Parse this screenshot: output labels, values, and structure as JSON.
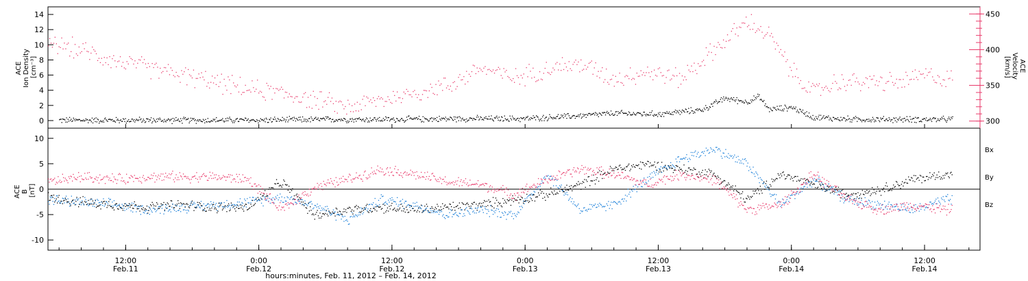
{
  "figure": {
    "xlabel": "hours:minutes, Feb. 11, 2012 – Feb. 14, 2012",
    "time_ticks": [
      {
        "time": "12:00",
        "date": "Feb.11"
      },
      {
        "time": "0:00",
        "date": "Feb.12"
      },
      {
        "time": "12:00",
        "date": "Feb.12"
      },
      {
        "time": "0:00",
        "date": "Feb.13"
      },
      {
        "time": "12:00",
        "date": "Feb.13"
      },
      {
        "time": "0:00",
        "date": "Feb.14"
      },
      {
        "time": "12:00",
        "date": "Feb.14"
      }
    ]
  },
  "colors": {
    "density": "#000000",
    "velocity": "#e8396a",
    "bx": "#000000",
    "by": "#1a7fd9",
    "bz": "#e8396a"
  },
  "chart_data": [
    {
      "type": "scatter",
      "ylabel_left": [
        "ACE",
        "Ion Density",
        "[cm⁻³]"
      ],
      "ylabel_right": [
        "ACE",
        "Velocity",
        "[km/s]"
      ],
      "xlim_hours": [
        -7,
        77
      ],
      "ylim_left": [
        -1,
        15
      ],
      "ylim_right": [
        290,
        460
      ],
      "yticks_left": [
        "0",
        "2",
        "4",
        "6",
        "8",
        "10",
        "12",
        "14"
      ],
      "yticks_right": [
        "300",
        "350",
        "400",
        "450"
      ],
      "series": [
        {
          "key": "density",
          "axis": "left",
          "x_hours": [
            -6,
            0,
            6,
            12,
            18,
            24,
            30,
            36,
            40,
            44,
            48,
            52,
            54,
            56,
            57,
            58,
            60,
            62,
            64,
            66,
            68,
            70,
            72,
            74
          ],
          "values": [
            0.1,
            0.1,
            0.1,
            0.1,
            0.2,
            0.2,
            0.3,
            0.3,
            0.6,
            1.0,
            0.9,
            1.5,
            3.0,
            2.5,
            3.2,
            1.5,
            1.8,
            0.5,
            0.3,
            0.2,
            0.2,
            0.2,
            0.2,
            0.2
          ]
        },
        {
          "key": "velocity",
          "axis": "right",
          "x_hours": [
            -7,
            -4,
            -1,
            2,
            5,
            8,
            11,
            14,
            17,
            20,
            23,
            26,
            29,
            32,
            35,
            38,
            41,
            44,
            47,
            50,
            53,
            56,
            58,
            60,
            62,
            64,
            66,
            68,
            70,
            72,
            74
          ],
          "values": [
            410,
            400,
            385,
            375,
            365,
            355,
            345,
            340,
            330,
            320,
            330,
            340,
            350,
            375,
            360,
            375,
            380,
            360,
            370,
            360,
            400,
            440,
            420,
            370,
            340,
            355,
            355,
            355,
            355,
            365,
            360
          ]
        }
      ]
    },
    {
      "type": "scatter",
      "ylabel_left": [
        "ACE",
        "B",
        "[nT]"
      ],
      "xlim_hours": [
        -7,
        77
      ],
      "ylim": [
        -12,
        12
      ],
      "yticks": [
        "10",
        "5",
        "0",
        "-5",
        "-10"
      ],
      "zero_line": true,
      "legend": [
        "Bx",
        "By",
        "Bz"
      ],
      "series": [
        {
          "key": "bx",
          "name": "Bx",
          "x_hours": [
            -7,
            -4,
            -1,
            2,
            5,
            8,
            11,
            14,
            17,
            20,
            23,
            26,
            29,
            32,
            35,
            38,
            41,
            44,
            47,
            50,
            53,
            56,
            59,
            62,
            65,
            68,
            71,
            74
          ],
          "values": [
            -1.5,
            -2.5,
            -3,
            -3.5,
            -3,
            -3.5,
            -3.5,
            1.5,
            -5,
            -4,
            -3.5,
            -4,
            -3.5,
            -3,
            -2,
            -1,
            1,
            4,
            5,
            4,
            3,
            -2,
            3,
            1,
            -1,
            0,
            2,
            3
          ]
        },
        {
          "key": "by",
          "name": "By",
          "x_hours": [
            -7,
            -4,
            -1,
            2,
            5,
            8,
            11,
            14,
            17,
            20,
            23,
            26,
            29,
            32,
            35,
            38,
            41,
            44,
            47,
            50,
            53,
            56,
            59,
            62,
            65,
            68,
            71,
            74
          ],
          "values": [
            -2,
            -2.5,
            -3,
            -4,
            -3.5,
            -3,
            -2.5,
            -1.5,
            -3,
            -6,
            -2,
            -3,
            -5,
            -4,
            -5,
            3,
            -4,
            -3,
            2,
            6,
            8,
            5,
            -3,
            2,
            -2,
            -3,
            -4,
            -2
          ]
        },
        {
          "key": "bz",
          "name": "Bz",
          "x_hours": [
            -7,
            -4,
            -1,
            2,
            5,
            8,
            11,
            14,
            17,
            20,
            23,
            26,
            29,
            32,
            35,
            38,
            41,
            44,
            47,
            50,
            53,
            56,
            59,
            62,
            65,
            68,
            71,
            74
          ],
          "values": [
            1.5,
            2.5,
            2,
            2.5,
            2.5,
            2.5,
            2,
            -4,
            0.5,
            2,
            4,
            3,
            1.5,
            1,
            -1,
            2,
            4,
            3,
            1,
            3,
            2,
            -4,
            -3,
            3,
            -2,
            -4,
            -3,
            -4
          ]
        }
      ]
    }
  ]
}
